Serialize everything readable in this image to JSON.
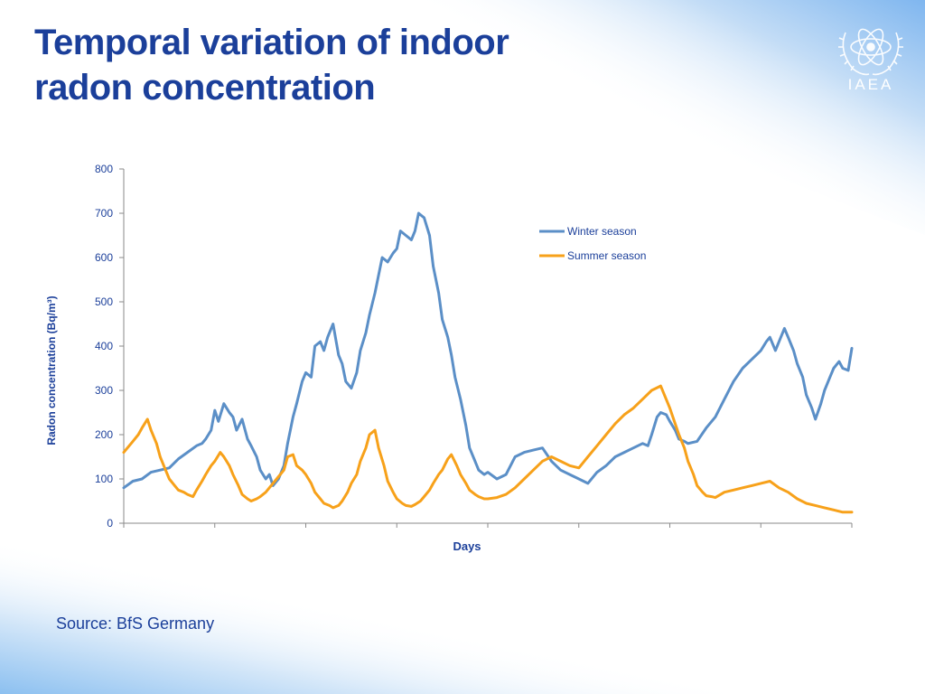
{
  "slide": {
    "title_line1": "Temporal variation of indoor",
    "title_line2": "radon concentration",
    "source": "Source: BfS Germany",
    "logo_text": "IAEA"
  },
  "colors": {
    "title": "#1b3f9a",
    "winter": "#5b8fc7",
    "summer": "#f7a11a",
    "axis": "#8a8a8a",
    "label": "#1b3f9a"
  },
  "chart_data": {
    "type": "line",
    "title": "",
    "xlabel": "Days",
    "ylabel": "Radon concentration (Bq/m³)",
    "ylim": [
      0,
      800
    ],
    "yticks": [
      0,
      100,
      200,
      300,
      400,
      500,
      600,
      700,
      800
    ],
    "xlim": [
      0,
      400
    ],
    "xticks": [
      0,
      50,
      100,
      150,
      200,
      250,
      300,
      350,
      400
    ],
    "xtick_labels_shown": false,
    "legend": {
      "position": "top-right"
    },
    "series": [
      {
        "name": "Winter season",
        "x": [
          0,
          5,
          10,
          15,
          20,
          25,
          30,
          35,
          40,
          43,
          45,
          48,
          50,
          52,
          55,
          58,
          60,
          62,
          65,
          68,
          70,
          73,
          75,
          78,
          80,
          82,
          85,
          88,
          90,
          93,
          95,
          98,
          100,
          103,
          105,
          108,
          110,
          112,
          115,
          118,
          120,
          122,
          125,
          128,
          130,
          133,
          135,
          138,
          140,
          142,
          145,
          148,
          150,
          152,
          155,
          158,
          160,
          162,
          165,
          168,
          170,
          173,
          175,
          178,
          180,
          182,
          185,
          188,
          190,
          193,
          195,
          198,
          200,
          205,
          210,
          215,
          220,
          225,
          230,
          235,
          240,
          245,
          250,
          255,
          260,
          265,
          270,
          275,
          280,
          285,
          288,
          290,
          293,
          295,
          298,
          300,
          303,
          305,
          308,
          310,
          315,
          320,
          325,
          330,
          335,
          340,
          345,
          350,
          353,
          355,
          358,
          360,
          363,
          365,
          368,
          370,
          373,
          375,
          378,
          380,
          383,
          385,
          388,
          390,
          393,
          395,
          398,
          400
        ],
        "y": [
          80,
          95,
          100,
          115,
          120,
          125,
          145,
          160,
          175,
          180,
          190,
          210,
          255,
          230,
          270,
          250,
          240,
          210,
          235,
          190,
          175,
          150,
          120,
          100,
          110,
          85,
          100,
          130,
          180,
          240,
          270,
          320,
          340,
          330,
          400,
          410,
          390,
          420,
          450,
          380,
          360,
          320,
          305,
          340,
          390,
          430,
          470,
          520,
          560,
          600,
          590,
          610,
          620,
          660,
          650,
          640,
          660,
          700,
          690,
          650,
          580,
          520,
          460,
          420,
          380,
          330,
          280,
          220,
          170,
          140,
          120,
          110,
          115,
          100,
          110,
          150,
          160,
          165,
          170,
          140,
          120,
          110,
          100,
          90,
          115,
          130,
          150,
          160,
          170,
          180,
          175,
          200,
          240,
          250,
          245,
          230,
          210,
          190,
          185,
          180,
          185,
          215,
          240,
          280,
          320,
          350,
          370,
          390,
          410,
          420,
          390,
          410,
          440,
          420,
          390,
          360,
          330,
          290,
          260,
          235,
          270,
          300,
          330,
          350,
          365,
          350,
          345,
          395
        ]
      },
      {
        "name": "Summer season",
        "x": [
          0,
          5,
          8,
          10,
          13,
          15,
          18,
          20,
          23,
          25,
          28,
          30,
          33,
          35,
          38,
          40,
          43,
          45,
          48,
          50,
          53,
          55,
          58,
          60,
          63,
          65,
          68,
          70,
          73,
          75,
          78,
          80,
          83,
          85,
          88,
          90,
          93,
          95,
          98,
          100,
          103,
          105,
          108,
          110,
          113,
          115,
          118,
          120,
          123,
          125,
          128,
          130,
          133,
          135,
          138,
          140,
          143,
          145,
          148,
          150,
          153,
          155,
          158,
          160,
          163,
          165,
          168,
          170,
          173,
          175,
          178,
          180,
          183,
          185,
          188,
          190,
          193,
          195,
          198,
          200,
          205,
          210,
          215,
          220,
          225,
          230,
          235,
          240,
          245,
          250,
          255,
          260,
          265,
          270,
          275,
          280,
          285,
          290,
          295,
          300,
          305,
          308,
          310,
          313,
          315,
          318,
          320,
          323,
          325,
          328,
          330,
          335,
          340,
          345,
          350,
          355,
          360,
          365,
          370,
          375,
          380,
          385,
          390,
          395,
          400
        ],
        "y": [
          160,
          185,
          200,
          215,
          235,
          210,
          180,
          150,
          120,
          100,
          85,
          75,
          70,
          65,
          60,
          75,
          95,
          110,
          130,
          140,
          160,
          150,
          130,
          110,
          85,
          65,
          55,
          50,
          55,
          60,
          70,
          80,
          95,
          105,
          120,
          150,
          155,
          130,
          120,
          110,
          90,
          70,
          55,
          45,
          40,
          35,
          40,
          50,
          70,
          90,
          110,
          140,
          170,
          200,
          210,
          170,
          130,
          95,
          70,
          55,
          45,
          40,
          38,
          42,
          50,
          60,
          75,
          90,
          110,
          120,
          145,
          155,
          130,
          110,
          90,
          75,
          65,
          60,
          55,
          55,
          58,
          65,
          80,
          100,
          120,
          140,
          150,
          140,
          130,
          125,
          150,
          175,
          200,
          225,
          245,
          260,
          280,
          300,
          310,
          260,
          200,
          170,
          140,
          110,
          85,
          70,
          62,
          60,
          58,
          65,
          70,
          75,
          80,
          85,
          90,
          95,
          80,
          70,
          55,
          45,
          40,
          35,
          30,
          25,
          25
        ]
      }
    ]
  }
}
